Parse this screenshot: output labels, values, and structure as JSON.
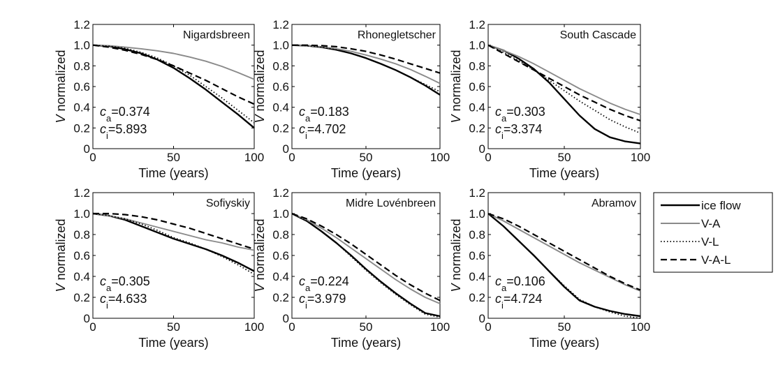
{
  "chart_data": {
    "type": "line",
    "xlabel": "Time (years)",
    "ylabel_italic": "V",
    "ylabel_rest": " normalized",
    "xlim": [
      0,
      100
    ],
    "ylim": [
      0,
      1.2
    ],
    "xticks": [
      0,
      50,
      100
    ],
    "yticks": [
      0,
      0.2,
      0.4,
      0.6,
      0.8,
      1.0,
      1.2
    ],
    "legend": {
      "placement": "right",
      "entries": [
        {
          "name": "ice flow",
          "style": "solid-black"
        },
        {
          "name": "V-A",
          "style": "solid-gray"
        },
        {
          "name": "V-L",
          "style": "dotted"
        },
        {
          "name": "V-A-L",
          "style": "dashed"
        }
      ]
    },
    "panels": [
      {
        "title": "Nigardsbreen",
        "ca_label": "c",
        "ca_sub": "a",
        "ca_value": "=0.374",
        "ci_label": "c",
        "ci_sub": "i",
        "ci_value": "=5.893",
        "x": [
          0,
          10,
          20,
          30,
          40,
          50,
          60,
          70,
          80,
          90,
          100
        ],
        "series": [
          {
            "key": "ice flow",
            "values": [
              1.0,
              0.99,
              0.96,
              0.92,
              0.86,
              0.78,
              0.68,
              0.57,
              0.45,
              0.33,
              0.2
            ]
          },
          {
            "key": "V-A",
            "values": [
              1.0,
              0.995,
              0.98,
              0.965,
              0.945,
              0.92,
              0.885,
              0.845,
              0.795,
              0.735,
              0.67
            ]
          },
          {
            "key": "V-L",
            "values": [
              1.0,
              0.99,
              0.97,
              0.93,
              0.875,
              0.8,
              0.71,
              0.6,
              0.49,
              0.37,
              0.25
            ]
          },
          {
            "key": "V-A-L",
            "values": [
              1.0,
              0.98,
              0.95,
              0.91,
              0.86,
              0.8,
              0.73,
              0.66,
              0.58,
              0.5,
              0.43
            ]
          }
        ]
      },
      {
        "title": "Rhonegletscher",
        "ca_label": "c",
        "ca_sub": "a",
        "ca_value": "=0.183",
        "ci_label": "c",
        "ci_sub": "i",
        "ci_value": "=4.702",
        "x": [
          0,
          10,
          20,
          30,
          40,
          50,
          60,
          70,
          80,
          90,
          100
        ],
        "series": [
          {
            "key": "ice flow",
            "values": [
              1.0,
              0.995,
              0.98,
              0.955,
              0.92,
              0.875,
              0.82,
              0.76,
              0.69,
              0.61,
              0.52
            ]
          },
          {
            "key": "V-A",
            "values": [
              1.0,
              0.995,
              0.985,
              0.965,
              0.94,
              0.905,
              0.865,
              0.82,
              0.765,
              0.7,
              0.63
            ]
          },
          {
            "key": "V-L",
            "values": [
              1.0,
              0.995,
              0.98,
              0.955,
              0.92,
              0.875,
              0.82,
              0.76,
              0.69,
              0.62,
              0.55
            ]
          },
          {
            "key": "V-A-L",
            "values": [
              1.0,
              1.0,
              0.995,
              0.985,
              0.965,
              0.94,
              0.905,
              0.865,
              0.82,
              0.775,
              0.73
            ]
          }
        ]
      },
      {
        "title": "South Cascade",
        "ca_label": "c",
        "ca_sub": "a",
        "ca_value": "=0.303",
        "ci_label": "c",
        "ci_sub": "i",
        "ci_value": "=3.374",
        "x": [
          0,
          10,
          20,
          30,
          40,
          50,
          60,
          70,
          80,
          90,
          100
        ],
        "series": [
          {
            "key": "ice flow",
            "values": [
              1.0,
              0.95,
              0.87,
              0.77,
              0.64,
              0.48,
              0.32,
              0.19,
              0.11,
              0.07,
              0.05
            ]
          },
          {
            "key": "V-A",
            "values": [
              1.0,
              0.95,
              0.89,
              0.82,
              0.74,
              0.66,
              0.58,
              0.51,
              0.44,
              0.38,
              0.33
            ]
          },
          {
            "key": "V-L",
            "values": [
              1.0,
              0.93,
              0.85,
              0.76,
              0.66,
              0.56,
              0.46,
              0.37,
              0.28,
              0.21,
              0.15
            ]
          },
          {
            "key": "V-A-L",
            "values": [
              1.0,
              0.92,
              0.84,
              0.76,
              0.68,
              0.6,
              0.52,
              0.45,
              0.38,
              0.32,
              0.27
            ]
          }
        ]
      },
      {
        "title": "Sofiyskiy",
        "ca_label": "c",
        "ca_sub": "a",
        "ca_value": "=0.305",
        "ci_label": "c",
        "ci_sub": "i",
        "ci_value": "=4.633",
        "x": [
          0,
          10,
          20,
          30,
          40,
          50,
          60,
          70,
          80,
          90,
          100
        ],
        "series": [
          {
            "key": "ice flow",
            "values": [
              1.0,
              0.98,
              0.94,
              0.88,
              0.82,
              0.76,
              0.71,
              0.66,
              0.6,
              0.53,
              0.45
            ]
          },
          {
            "key": "V-A",
            "values": [
              1.0,
              0.98,
              0.95,
              0.91,
              0.87,
              0.83,
              0.79,
              0.75,
              0.72,
              0.68,
              0.65
            ]
          },
          {
            "key": "V-L",
            "values": [
              1.0,
              0.98,
              0.95,
              0.9,
              0.84,
              0.77,
              0.72,
              0.66,
              0.59,
              0.51,
              0.42
            ]
          },
          {
            "key": "V-A-L",
            "values": [
              1.0,
              1.0,
              0.99,
              0.97,
              0.94,
              0.9,
              0.86,
              0.81,
              0.76,
              0.71,
              0.66
            ]
          }
        ]
      },
      {
        "title": "Midre Lovénbreen",
        "ca_label": "c",
        "ca_sub": "a",
        "ca_value": "=0.224",
        "ci_label": "c",
        "ci_sub": "i",
        "ci_value": "=3.979",
        "x": [
          0,
          10,
          20,
          30,
          40,
          50,
          60,
          70,
          80,
          90,
          100
        ],
        "series": [
          {
            "key": "ice flow",
            "values": [
              1.0,
              0.93,
              0.83,
              0.72,
              0.6,
              0.47,
              0.35,
              0.24,
              0.14,
              0.05,
              0.02
            ]
          },
          {
            "key": "V-A",
            "values": [
              1.0,
              0.94,
              0.86,
              0.77,
              0.67,
              0.57,
              0.47,
              0.37,
              0.28,
              0.2,
              0.14
            ]
          },
          {
            "key": "V-L",
            "values": [
              1.0,
              0.93,
              0.83,
              0.72,
              0.59,
              0.46,
              0.34,
              0.23,
              0.13,
              0.04,
              0.01
            ]
          },
          {
            "key": "V-A-L",
            "values": [
              1.0,
              0.95,
              0.88,
              0.8,
              0.71,
              0.61,
              0.51,
              0.41,
              0.32,
              0.24,
              0.17
            ]
          }
        ]
      },
      {
        "title": "Abramov",
        "ca_label": "c",
        "ca_sub": "a",
        "ca_value": "=0.106",
        "ci_label": "c",
        "ci_sub": "i",
        "ci_value": "=4.724",
        "x": [
          0,
          10,
          20,
          30,
          40,
          50,
          60,
          70,
          80,
          90,
          100
        ],
        "series": [
          {
            "key": "ice flow",
            "values": [
              1.0,
              0.88,
              0.74,
              0.6,
              0.45,
              0.3,
              0.17,
              0.11,
              0.07,
              0.04,
              0.02
            ]
          },
          {
            "key": "V-A",
            "values": [
              1.0,
              0.93,
              0.85,
              0.77,
              0.69,
              0.61,
              0.53,
              0.46,
              0.39,
              0.32,
              0.26
            ]
          },
          {
            "key": "V-L",
            "values": [
              1.0,
              0.88,
              0.74,
              0.6,
              0.45,
              0.31,
              0.18,
              0.11,
              0.06,
              0.02,
              0.0
            ]
          },
          {
            "key": "V-A-L",
            "values": [
              1.0,
              0.95,
              0.88,
              0.8,
              0.72,
              0.64,
              0.56,
              0.48,
              0.4,
              0.33,
              0.27
            ]
          }
        ]
      }
    ]
  }
}
